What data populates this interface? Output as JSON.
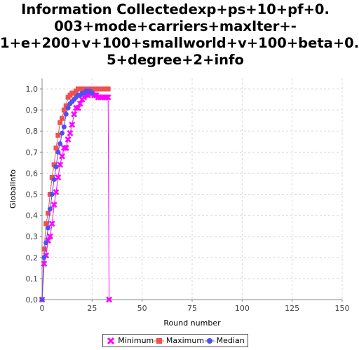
{
  "chart_data": {
    "type": "line",
    "title_lines": [
      "Information Collectedexp+ps+10+pf+0.",
      "003+mode+carriers+maxIter+-",
      "1+e+200+v+100+smallworld+v+100+beta+0.",
      "5+degree+2+info"
    ],
    "xlabel": "Round number",
    "ylabel": "GlobalInfo",
    "xlim": [
      0,
      150
    ],
    "ylim": [
      0,
      1.05
    ],
    "xticks": [
      0,
      25,
      50,
      75,
      100,
      125,
      150
    ],
    "yticks": [
      0.0,
      0.1,
      0.2,
      0.3,
      0.4,
      0.5,
      0.6,
      0.7,
      0.8,
      0.9,
      1.0
    ],
    "ytick_labels": [
      "0,0",
      "0,1",
      "0,2",
      "0,3",
      "0,4",
      "0,5",
      "0,6",
      "0,7",
      "0,8",
      "0,9",
      "1,0"
    ],
    "grid": true,
    "legend_position": "bottom",
    "series": [
      {
        "name": "Minimum",
        "color": "#ff00ff",
        "marker": "x",
        "points": [
          [
            0,
            0.0
          ],
          [
            1,
            0.17
          ],
          [
            2,
            0.21
          ],
          [
            3,
            0.28
          ],
          [
            4,
            0.3
          ],
          [
            5,
            0.36
          ],
          [
            6,
            0.45
          ],
          [
            7,
            0.51
          ],
          [
            8,
            0.58
          ],
          [
            9,
            0.64
          ],
          [
            10,
            0.68
          ],
          [
            11,
            0.72
          ],
          [
            12,
            0.72
          ],
          [
            13,
            0.76
          ],
          [
            14,
            0.79
          ],
          [
            15,
            0.83
          ],
          [
            16,
            0.88
          ],
          [
            17,
            0.91
          ],
          [
            18,
            0.91
          ],
          [
            19,
            0.93
          ],
          [
            20,
            0.95
          ],
          [
            21,
            0.96
          ],
          [
            22,
            0.97
          ],
          [
            23,
            0.97
          ],
          [
            24,
            0.98
          ],
          [
            25,
            0.98
          ],
          [
            26,
            0.97
          ],
          [
            27,
            0.97
          ],
          [
            28,
            0.96
          ],
          [
            29,
            0.96
          ],
          [
            30,
            0.96
          ],
          [
            31,
            0.96
          ],
          [
            32,
            0.96
          ],
          [
            33,
            0.96
          ],
          [
            33.5,
            0.0
          ]
        ]
      },
      {
        "name": "Maximum",
        "color": "#f05050",
        "marker": "square",
        "points": [
          [
            0,
            0.0
          ],
          [
            1,
            0.24
          ],
          [
            2,
            0.36
          ],
          [
            3,
            0.41
          ],
          [
            4,
            0.5
          ],
          [
            5,
            0.58
          ],
          [
            6,
            0.64
          ],
          [
            7,
            0.72
          ],
          [
            8,
            0.78
          ],
          [
            9,
            0.84
          ],
          [
            10,
            0.86
          ],
          [
            11,
            0.9
          ],
          [
            12,
            0.92
          ],
          [
            13,
            0.96
          ],
          [
            14,
            0.97
          ],
          [
            15,
            0.98
          ],
          [
            16,
            0.98
          ],
          [
            17,
            0.99
          ],
          [
            18,
            1.0
          ],
          [
            19,
            1.0
          ],
          [
            20,
            1.0
          ],
          [
            21,
            1.0
          ],
          [
            22,
            1.0
          ],
          [
            23,
            1.0
          ],
          [
            24,
            1.0
          ],
          [
            25,
            1.0
          ],
          [
            26,
            1.0
          ],
          [
            27,
            1.0
          ],
          [
            28,
            1.0
          ],
          [
            29,
            1.0
          ],
          [
            30,
            1.0
          ],
          [
            31,
            1.0
          ],
          [
            32,
            1.0
          ],
          [
            33,
            1.0
          ]
        ]
      },
      {
        "name": "Median",
        "color": "#5050f0",
        "marker": "circle",
        "points": [
          [
            0,
            0.0
          ],
          [
            1,
            0.2
          ],
          [
            2,
            0.27
          ],
          [
            3,
            0.34
          ],
          [
            4,
            0.43
          ],
          [
            5,
            0.5
          ],
          [
            6,
            0.57
          ],
          [
            7,
            0.63
          ],
          [
            8,
            0.7
          ],
          [
            9,
            0.74
          ],
          [
            10,
            0.79
          ],
          [
            11,
            0.82
          ],
          [
            12,
            0.88
          ],
          [
            13,
            0.91
          ],
          [
            14,
            0.93
          ],
          [
            15,
            0.94
          ],
          [
            16,
            0.95
          ],
          [
            17,
            0.96
          ],
          [
            18,
            0.97
          ],
          [
            19,
            0.97
          ],
          [
            20,
            0.98
          ],
          [
            21,
            0.98
          ],
          [
            22,
            0.99
          ],
          [
            23,
            0.99
          ],
          [
            24,
            0.99
          ],
          [
            25,
            0.98
          ]
        ]
      }
    ]
  }
}
